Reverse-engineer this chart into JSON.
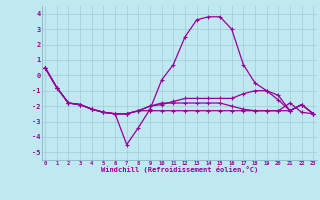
{
  "xlabel": "Windchill (Refroidissement éolien,°C)",
  "background_color": "#c0e8f0",
  "grid_color": "#a0ccd8",
  "line_color": "#990099",
  "x_hours": [
    0,
    1,
    2,
    3,
    4,
    5,
    6,
    7,
    8,
    9,
    10,
    11,
    12,
    13,
    14,
    15,
    16,
    17,
    18,
    19,
    20,
    21,
    22,
    23
  ],
  "ylim": [
    -5.5,
    4.5
  ],
  "yticks": [
    -5,
    -4,
    -3,
    -2,
    -1,
    0,
    1,
    2,
    3,
    4
  ],
  "xlim": [
    -0.3,
    23.3
  ],
  "lines": {
    "main": [
      0.5,
      -0.8,
      -1.8,
      -1.9,
      -2.2,
      -2.4,
      -2.5,
      -4.5,
      -3.4,
      -2.2,
      -0.3,
      0.7,
      2.5,
      3.6,
      3.8,
      3.8,
      3.0,
      0.7,
      -0.5,
      -1.0,
      -1.6,
      -2.3,
      -1.9,
      -2.5
    ],
    "line2": [
      0.5,
      -0.8,
      -1.8,
      -1.9,
      -2.2,
      -2.4,
      -2.5,
      -2.5,
      -2.3,
      -2.3,
      -2.3,
      -2.3,
      -2.3,
      -2.3,
      -2.3,
      -2.3,
      -2.3,
      -2.3,
      -2.3,
      -2.3,
      -2.3,
      -2.3,
      -1.9,
      -2.5
    ],
    "line3": [
      0.5,
      -0.8,
      -1.8,
      -1.9,
      -2.2,
      -2.4,
      -2.5,
      -2.5,
      -2.3,
      -2.0,
      -1.9,
      -1.7,
      -1.5,
      -1.5,
      -1.5,
      -1.5,
      -1.5,
      -1.2,
      -1.0,
      -1.0,
      -1.3,
      -2.3,
      -1.9,
      -2.5
    ],
    "line4": [
      0.5,
      -0.8,
      -1.8,
      -1.9,
      -2.2,
      -2.4,
      -2.5,
      -2.5,
      -2.3,
      -2.0,
      -1.8,
      -1.8,
      -1.8,
      -1.8,
      -1.8,
      -1.8,
      -2.0,
      -2.2,
      -2.3,
      -2.3,
      -2.3,
      -1.8,
      -2.4,
      -2.5
    ]
  }
}
